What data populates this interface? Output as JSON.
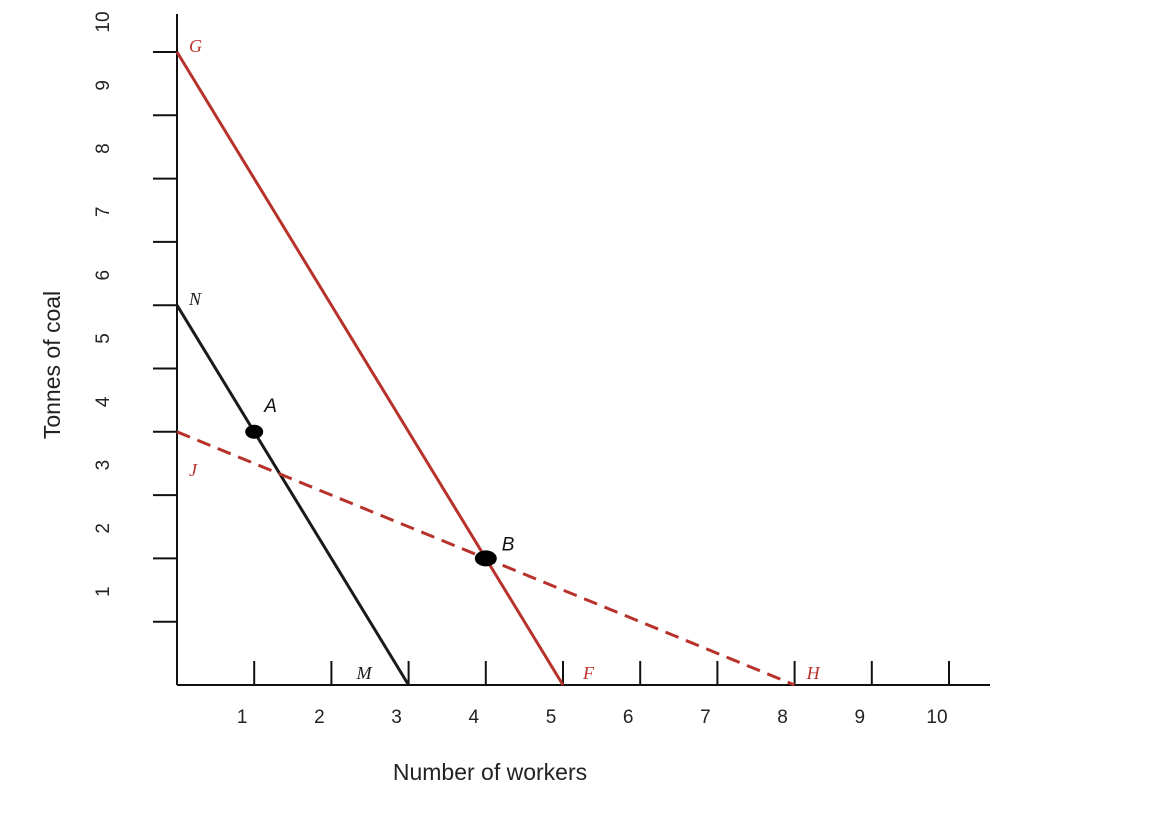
{
  "chart_data": {
    "type": "line",
    "xlabel": "Number of workers",
    "ylabel": "Tonnes of coal",
    "xlim": [
      0,
      10
    ],
    "ylim": [
      0,
      10
    ],
    "x_ticks": [
      "1",
      "2",
      "3",
      "4",
      "5",
      "6",
      "7",
      "8",
      "9",
      "10"
    ],
    "y_ticks": [
      "1",
      "2",
      "3",
      "4",
      "5",
      "6",
      "7",
      "8",
      "9",
      "10"
    ],
    "grid": false,
    "colors": {
      "red": "#b8322c",
      "black": "#1a1a1a"
    },
    "lines": [
      {
        "from": [
          0,
          6
        ],
        "to": [
          3,
          0
        ],
        "color": "black",
        "style": "solid",
        "start_label": "N",
        "end_label": "M"
      },
      {
        "from": [
          0,
          10
        ],
        "to": [
          5,
          0
        ],
        "color": "red",
        "style": "solid",
        "start_label": "G",
        "end_label": "F"
      },
      {
        "from": [
          0,
          4
        ],
        "to": [
          8,
          0
        ],
        "color": "red",
        "style": "dashed",
        "start_label": "J",
        "end_label": "H"
      }
    ],
    "points": [
      {
        "label": "A",
        "x": 1,
        "y": 4
      },
      {
        "label": "B",
        "x": 4,
        "y": 2
      }
    ]
  }
}
